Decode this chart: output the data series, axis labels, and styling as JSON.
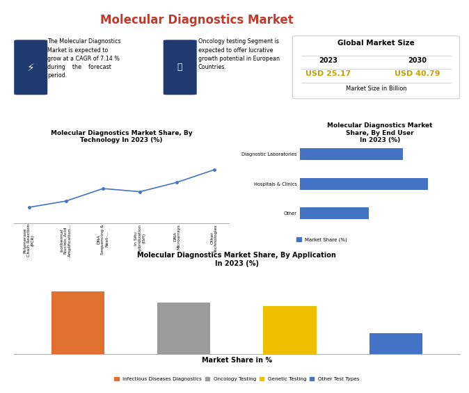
{
  "title": "Molecular Diagnostics Market",
  "title_color": "#c0392b",
  "bg_color": "#ffffff",
  "info_text1": "The Molecular Diagnostics\nMarket is expected to\ngrow at a CAGR of 7.14 %\nduring    the    forecast\nperiod.",
  "info_text2": "Oncology testing Segment is\nexpected to offer lucrative\ngrowth potential in European\nCountries.",
  "market_size_title": "Global Market Size",
  "year1": "2023",
  "year2": "2030",
  "value1": "USD 25.17",
  "value2": "USD 40.79",
  "value_color": "#c8a000",
  "market_size_note": "Market Size in Billion",
  "tech_chart_title": "Molecular Diagnostics Market Share, By\nTechnology In 2023 (%)",
  "tech_categories": [
    "Polymerase\nChain Reaction\n(PCR)",
    "Isothermal\nNucleic Acid\nAmplification...",
    "DNA\nSequencing &\nNext-...",
    "In Situ\nHybridization\n(ISH)",
    "DNA\nMicroarrays",
    "Other\nTechnologies"
  ],
  "tech_values": [
    10,
    14,
    22,
    20,
    26,
    34
  ],
  "tech_line_color": "#4472c4",
  "enduser_chart_title": "Molecular Diagnostics Market\nShare, By End User\nIn 2023 (%)",
  "enduser_categories": [
    "Other",
    "Hospitals & Clinics",
    "Diagnostic Laboratories"
  ],
  "enduser_values": [
    28,
    52,
    42
  ],
  "enduser_bar_color": "#4472c4",
  "enduser_legend": "Market Share (%)",
  "app_chart_title": "Molecular Diagnostics Market Share, By Application\nIn 2023 (%)",
  "app_categories": [
    "Infectious Diseases Diagnostics",
    "Oncology Testing",
    "Genetic Testing",
    "Other Test Types"
  ],
  "app_values": [
    55,
    45,
    42,
    18
  ],
  "app_colors": [
    "#e07030",
    "#9b9b9b",
    "#f0c000",
    "#4472c4"
  ],
  "app_xlabel": "Market Share in %"
}
